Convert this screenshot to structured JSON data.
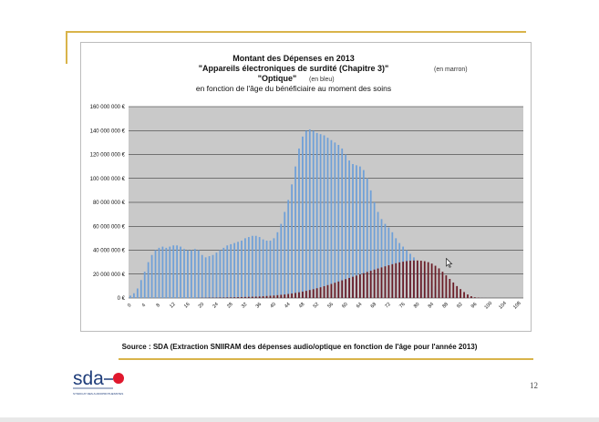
{
  "chart_data": {
    "type": "bar",
    "title_lines": [
      "Montant des Dépenses  en 2013",
      "\"Appareils électroniques de surdité (Chapitre 3)\"",
      "\"Optique\"",
      "en fonction de l'âge du bénéficiaire au moment des soins"
    ],
    "title_notes": [
      "(en marron)",
      "(en bleu)"
    ],
    "ylim": [
      0,
      160000000
    ],
    "y_ticks": [
      0,
      20000000,
      40000000,
      60000000,
      80000000,
      100000000,
      120000000,
      140000000,
      160000000
    ],
    "y_tick_labels": [
      "0 €",
      "20 000 000 €",
      "40 000 000 €",
      "60 000 000 €",
      "80 000 000 €",
      "100 000 000 €",
      "120 000 000 €",
      "140 000 000 €",
      "160 000 000 €"
    ],
    "x_tick_labels": [
      "0",
      "4",
      "8",
      "12",
      "16",
      "20",
      "24",
      "28",
      "32",
      "36",
      "40",
      "44",
      "48",
      "52",
      "56",
      "60",
      "64",
      "68",
      "72",
      "76",
      "80",
      "84",
      "88",
      "92",
      "96",
      "100",
      "104",
      "108"
    ],
    "grid": true,
    "series": [
      {
        "name": "Optique",
        "color": "#6fa0d8",
        "values": [
          2000000,
          4000000,
          8000000,
          15000000,
          22000000,
          30000000,
          36000000,
          40000000,
          42000000,
          43000000,
          42000000,
          43000000,
          44000000,
          44000000,
          43000000,
          41000000,
          40000000,
          40000000,
          41000000,
          40000000,
          36000000,
          34000000,
          35000000,
          36000000,
          38000000,
          40000000,
          42000000,
          44000000,
          45000000,
          46000000,
          47000000,
          48000000,
          50000000,
          51000000,
          52000000,
          52000000,
          51000000,
          49000000,
          48000000,
          48000000,
          50000000,
          55000000,
          62000000,
          72000000,
          82000000,
          95000000,
          110000000,
          125000000,
          135000000,
          140000000,
          141000000,
          140000000,
          138000000,
          137000000,
          136000000,
          134000000,
          132000000,
          130000000,
          128000000,
          125000000,
          120000000,
          115000000,
          112000000,
          111000000,
          110000000,
          107000000,
          100000000,
          90000000,
          80000000,
          72000000,
          66000000,
          62000000,
          59000000,
          55000000,
          50000000,
          46000000,
          43000000,
          40000000,
          37000000,
          34000000,
          30000000,
          26000000,
          22000000,
          18000000,
          14000000,
          10000000,
          7000000,
          5000000,
          3000000,
          2000000,
          1500000,
          1000000,
          700000,
          500000,
          300000,
          200000,
          100000,
          80000,
          50000,
          30000,
          20000,
          10000,
          5000,
          3000,
          2000,
          1000,
          500,
          200,
          100,
          50
        ]
      },
      {
        "name": "Appareils électroniques de surdité",
        "color": "#6b1d27",
        "values": [
          0,
          0,
          0,
          0,
          0,
          0,
          0,
          0,
          0,
          0,
          0,
          0,
          0,
          0,
          0,
          0,
          0,
          0,
          0,
          100000,
          200000,
          200000,
          300000,
          300000,
          300000,
          400000,
          400000,
          500000,
          500000,
          600000,
          700000,
          800000,
          900000,
          1000000,
          1100000,
          1200000,
          1300000,
          1500000,
          1700000,
          1900000,
          2100000,
          2400000,
          2700000,
          3000000,
          3400000,
          3800000,
          4300000,
          4800000,
          5400000,
          6000000,
          6700000,
          7400000,
          8200000,
          9000000,
          9900000,
          10800000,
          11800000,
          12800000,
          13800000,
          14800000,
          15800000,
          16800000,
          17800000,
          18800000,
          19800000,
          20800000,
          21800000,
          22800000,
          23800000,
          24700000,
          25600000,
          26500000,
          27400000,
          28300000,
          29100000,
          29800000,
          30400000,
          30900000,
          31200000,
          31400000,
          31400000,
          31200000,
          30800000,
          30000000,
          28800000,
          27000000,
          24800000,
          22000000,
          19000000,
          16000000,
          13000000,
          10000000,
          7500000,
          5000000,
          3000000,
          1500000,
          600000,
          300000,
          100000,
          50000,
          20000,
          10000,
          5000,
          2000,
          1000,
          500,
          200,
          100,
          50,
          10
        ]
      }
    ]
  },
  "source_caption": "Source : SDA (Extraction SNIIRAM des dépenses audio/optique en fonction de l'âge pour l'année 2013)",
  "logo": {
    "text": "sda",
    "tagline": "SYNDICAT DES AUDIOPROTHESISTES",
    "accent": "#e0182d",
    "color": "#1f3d7a"
  },
  "page_number": "12"
}
